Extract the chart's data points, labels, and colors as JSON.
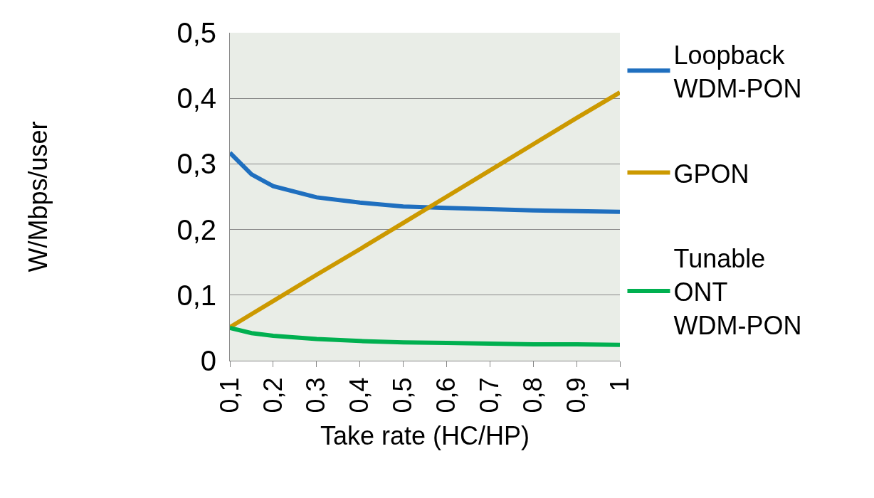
{
  "chart_data": {
    "type": "line",
    "xlabel": "Take rate (HC/HP)",
    "ylabel": "W/Mbps/user",
    "x": [
      0.1,
      0.15,
      0.2,
      0.3,
      0.4,
      0.5,
      0.6,
      0.7,
      0.8,
      0.9,
      1
    ],
    "series": [
      {
        "name": "Loopback WDM-PON",
        "color": "#1f6fbf",
        "values": [
          0.317,
          0.284,
          0.266,
          0.249,
          0.241,
          0.235,
          0.233,
          0.231,
          0.229,
          0.228,
          0.227
        ]
      },
      {
        "name": "GPON",
        "color": "#cc9900",
        "values": [
          0.051,
          0.071,
          0.091,
          0.131,
          0.17,
          0.21,
          0.25,
          0.29,
          0.33,
          0.37,
          0.409
        ]
      },
      {
        "name": "Tunable ONT WDM-PON",
        "color": "#00b050",
        "values": [
          0.05,
          0.042,
          0.038,
          0.033,
          0.03,
          0.028,
          0.027,
          0.026,
          0.025,
          0.025,
          0.024
        ]
      }
    ],
    "xlim": [
      0.1,
      1
    ],
    "xticks": [
      {
        "value": 0.1,
        "label": "0,1"
      },
      {
        "value": 0.2,
        "label": "0,2"
      },
      {
        "value": 0.3,
        "label": "0,3"
      },
      {
        "value": 0.4,
        "label": "0,4"
      },
      {
        "value": 0.5,
        "label": "0,5"
      },
      {
        "value": 0.6,
        "label": "0,6"
      },
      {
        "value": 0.7,
        "label": "0,7"
      },
      {
        "value": 0.8,
        "label": "0,8"
      },
      {
        "value": 0.9,
        "label": "0,9"
      },
      {
        "value": 1,
        "label": "1"
      }
    ],
    "ylim": [
      0,
      0.5
    ],
    "yticks": [
      0,
      {
        "value": 0.1,
        "label": "0,1"
      },
      {
        "value": 0.2,
        "label": "0,2"
      },
      {
        "value": 0.3,
        "label": "0,3"
      },
      {
        "value": 0.4,
        "label": "0,4"
      },
      {
        "value": 0.5,
        "label": "0,5"
      }
    ],
    "grid": "y",
    "legend": "right",
    "marker": "none",
    "line_style": "solid"
  }
}
